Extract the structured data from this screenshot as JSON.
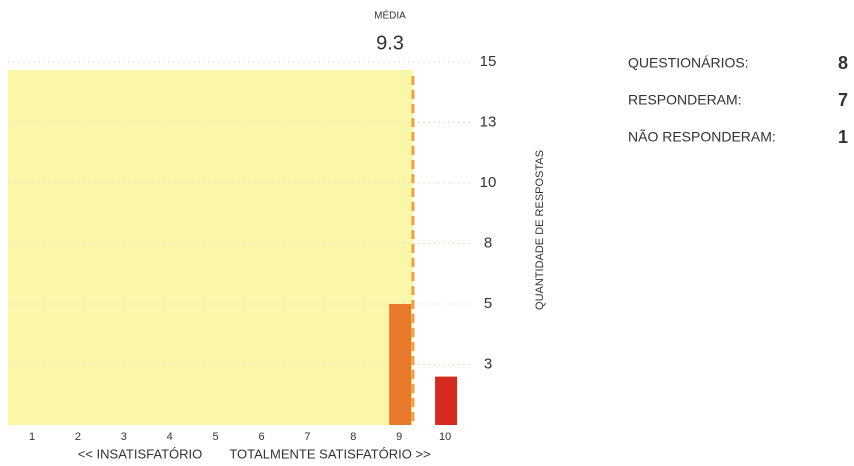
{
  "chart_data": {
    "type": "bar",
    "categories": [
      "1",
      "2",
      "3",
      "4",
      "5",
      "6",
      "7",
      "8",
      "9",
      "10"
    ],
    "values": [
      0,
      0,
      0,
      0,
      0,
      0,
      0,
      0,
      5,
      2
    ],
    "colors": [
      "#e8782a",
      "#e8782a",
      "#e8782a",
      "#e8782a",
      "#e8782a",
      "#e8782a",
      "#e8782a",
      "#e8782a",
      "#e8782a",
      "#d42a20"
    ],
    "ylim": [
      0,
      15
    ],
    "yticks": [
      {
        "value": 2.5,
        "label": "3"
      },
      5,
      {
        "value": 7.5,
        "label": "8"
      },
      10,
      {
        "value": 12.5,
        "label": "13"
      },
      15
    ],
    "grid": true,
    "y_label": "QUANTIDADE DE RESPOSTAS",
    "x_label_left": "<< INSATISFATÓRIO",
    "x_label_right": "TOTALMENTE SATISFATÓRIO >>",
    "mean_label": "MÉDIA",
    "mean": 9.3,
    "mean_color": "#f0a040",
    "shade_color": "#fbf7a8",
    "summary": [
      {
        "label": "QUESTIONÁRIOS:",
        "value": 8
      },
      {
        "label": "RESPONDERAM:",
        "value": 7
      },
      {
        "label": "NÃO RESPONDERAM:",
        "value": 1
      }
    ]
  }
}
